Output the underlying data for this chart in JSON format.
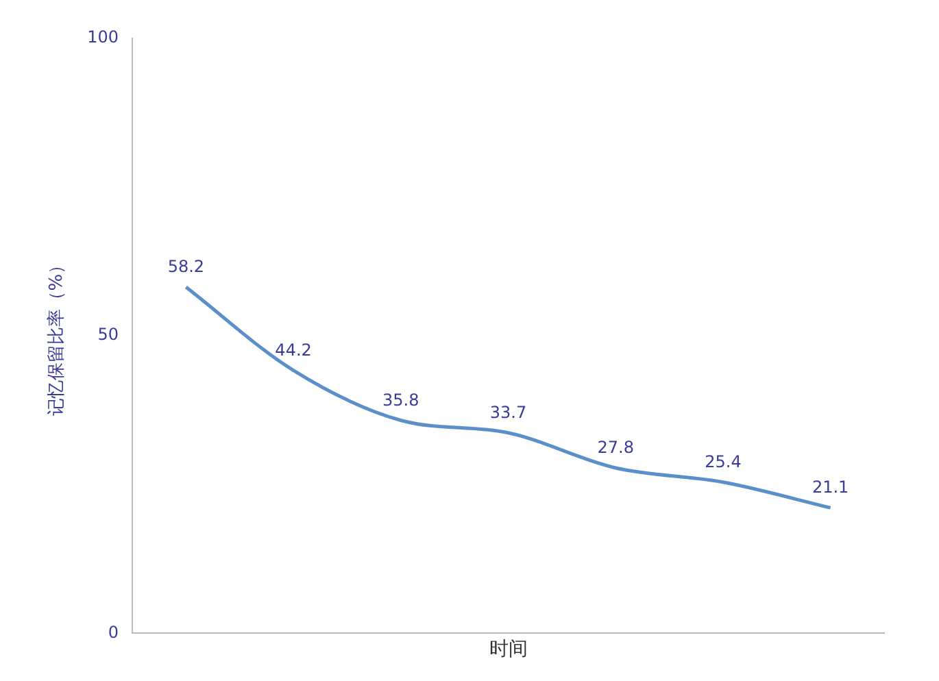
{
  "chart_data": {
    "type": "line",
    "xlabel": "时间",
    "ylabel": "记忆保留比率（%）",
    "categories": [
      null,
      null,
      null,
      null,
      null,
      null,
      null
    ],
    "series": [
      {
        "color": "#5b8fc9",
        "values": [
          58.2,
          44.2,
          35.8,
          33.7,
          27.8,
          25.4,
          21.1
        ]
      }
    ],
    "ylim": [
      0,
      100
    ],
    "yticks": [
      0,
      50,
      100
    ],
    "tick_labels": "y",
    "data_labels": true,
    "grid": false,
    "legend": false,
    "marker": "none",
    "line_style": "solid"
  }
}
